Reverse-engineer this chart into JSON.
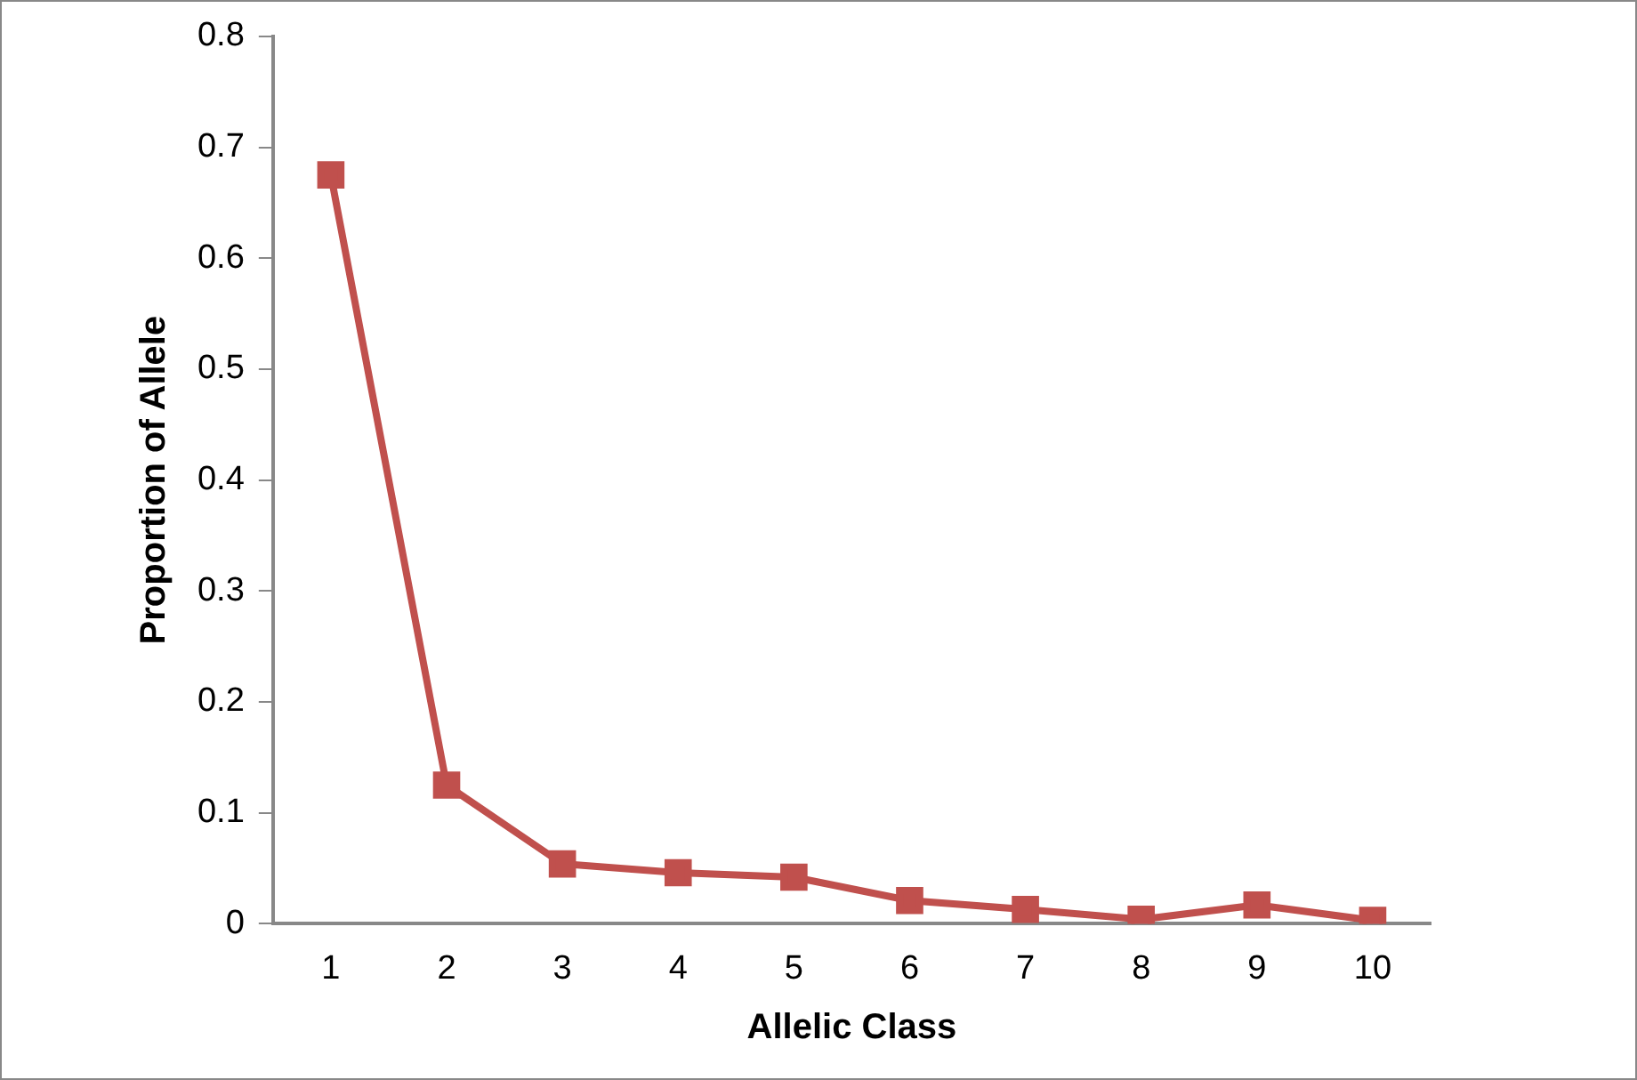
{
  "chart_data": {
    "type": "line",
    "xlabel": "Allelic Class",
    "ylabel": "Proportion of Allele",
    "categories": [
      "1",
      "2",
      "3",
      "4",
      "5",
      "6",
      "7",
      "8",
      "9",
      "10"
    ],
    "series": [
      {
        "color": "#c0504d",
        "values": [
          0.675,
          0.125,
          0.054,
          0.046,
          0.042,
          0.021,
          0.013,
          0.004,
          0.017,
          0.003
        ]
      }
    ],
    "ylim": [
      0,
      0.8
    ],
    "yticks": [
      0,
      0.1,
      0.2,
      0.3,
      0.4,
      0.5,
      0.6,
      0.7,
      0.8
    ],
    "grid": false,
    "legend": false,
    "marker": "square",
    "line_style": "solid"
  }
}
